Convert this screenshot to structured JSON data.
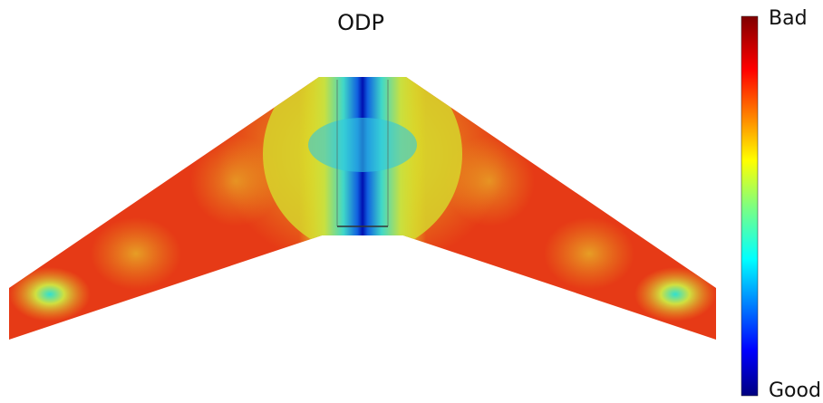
{
  "title": "ODP",
  "colorbar": {
    "top_label": "Bad",
    "bottom_label": "Good"
  }
}
